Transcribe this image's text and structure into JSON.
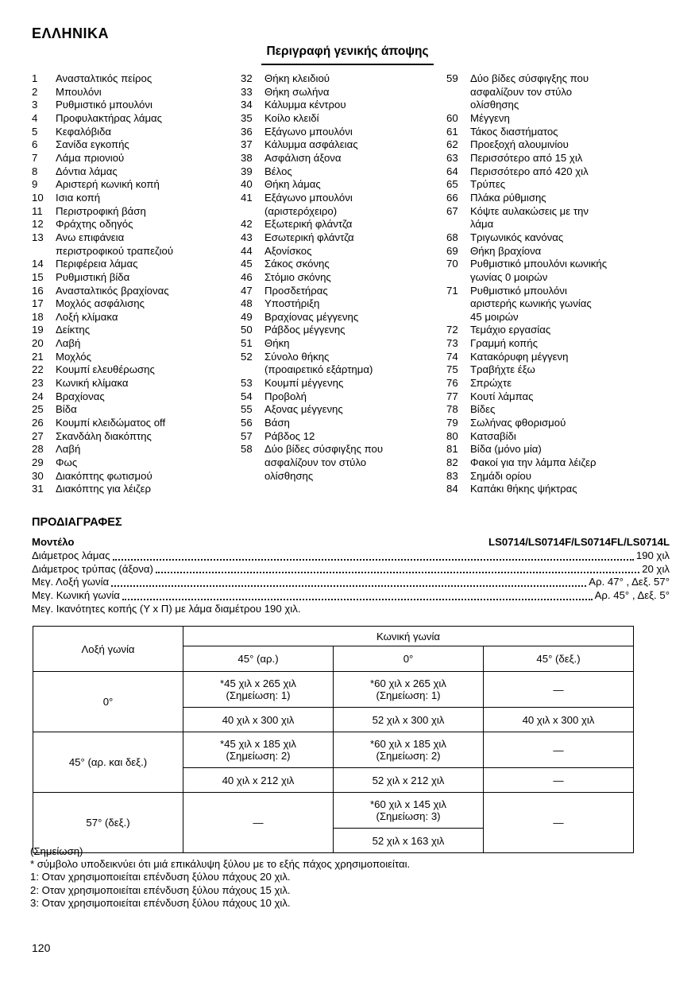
{
  "page": {
    "language_heading": "ΕΛΛΗΝΙΚΑ",
    "section_heading": "Περιγραφή γενικής άποψης",
    "page_number": "120"
  },
  "parts": {
    "col1": [
      {
        "n": "1",
        "t": "Ανασταλτικός πείρος"
      },
      {
        "n": "2",
        "t": "Μπουλόνι"
      },
      {
        "n": "3",
        "t": "Ρυθμιστικό μπουλόνι"
      },
      {
        "n": "4",
        "t": "Προφυλακτήρας λάμας"
      },
      {
        "n": "5",
        "t": "Κεφαλόβιδα"
      },
      {
        "n": "6",
        "t": "Σανίδα εγκοπής"
      },
      {
        "n": "7",
        "t": "Λάμα πριονιού"
      },
      {
        "n": "8",
        "t": "Δόντια λάμας"
      },
      {
        "n": "9",
        "t": "Αριστερή κωνική κοπή"
      },
      {
        "n": "10",
        "t": "Ισια κοπή"
      },
      {
        "n": "11",
        "t": "Περιστροφική βάση"
      },
      {
        "n": "12",
        "t": "Φράχτης οδηγός"
      },
      {
        "n": "13",
        "t": "Ανω επιφάνεια\nπεριστροφικού τραπεζιού"
      },
      {
        "n": "14",
        "t": "Περιφέρεια λάμας"
      },
      {
        "n": "15",
        "t": "Ρυθμιστική βίδα"
      },
      {
        "n": "16",
        "t": "Ανασταλτικός βραχίονας"
      },
      {
        "n": "17",
        "t": "Μοχλός ασφάλισης"
      },
      {
        "n": "18",
        "t": "Λοξή κλίμακα"
      },
      {
        "n": "19",
        "t": "Δείκτης"
      },
      {
        "n": "20",
        "t": "Λαβή"
      },
      {
        "n": "21",
        "t": "Μοχλός"
      },
      {
        "n": "22",
        "t": "Κουμπί ελευθέρωσης"
      },
      {
        "n": "23",
        "t": "Κωνική κλίμακα"
      },
      {
        "n": "24",
        "t": "Βραχίονας"
      },
      {
        "n": "25",
        "t": "Βίδα"
      },
      {
        "n": "26",
        "t": "Κουμπί κλειδώματος off"
      },
      {
        "n": "27",
        "t": "Σκανδάλη διακόπτης"
      },
      {
        "n": "28",
        "t": "Λαβή"
      },
      {
        "n": "29",
        "t": "Φως"
      },
      {
        "n": "30",
        "t": "Διακόπτης φωτισμού"
      },
      {
        "n": "31",
        "t": "Διακόπτης για λέιζερ"
      }
    ],
    "col2": [
      {
        "n": "32",
        "t": "Θήκη κλειδιού"
      },
      {
        "n": "33",
        "t": "Θήκη σωλήνα"
      },
      {
        "n": "34",
        "t": "Κάλυμμα κέντρου"
      },
      {
        "n": "35",
        "t": "Κοίλο κλειδί"
      },
      {
        "n": "36",
        "t": "Εξάγωνο μπουλόνι"
      },
      {
        "n": "37",
        "t": "Κάλυμμα ασφάλειας"
      },
      {
        "n": "38",
        "t": "Ασφάλιση άξονα"
      },
      {
        "n": "39",
        "t": "Βέλος"
      },
      {
        "n": "40",
        "t": "Θήκη λάμας"
      },
      {
        "n": "41",
        "t": "Εξάγωνο μπουλόνι\n(αριστερόχειρο)"
      },
      {
        "n": "42",
        "t": "Εξωτερική φλάντζα"
      },
      {
        "n": "43",
        "t": "Εσωτερική φλάντζα"
      },
      {
        "n": "44",
        "t": "Αξονίσκος"
      },
      {
        "n": "45",
        "t": "Σάκος σκόνης"
      },
      {
        "n": "46",
        "t": "Στόμιο σκόνης"
      },
      {
        "n": "47",
        "t": "Προσδετήρας"
      },
      {
        "n": "48",
        "t": "Υποστήριξη"
      },
      {
        "n": "49",
        "t": "Βραχίονας μέγγενης"
      },
      {
        "n": "50",
        "t": "Ράβδος μέγγενης"
      },
      {
        "n": "51",
        "t": "Θήκη"
      },
      {
        "n": "52",
        "t": "Σύνολο θήκης\n(προαιρετικό εξάρτημα)"
      },
      {
        "n": "53",
        "t": "Κουμπί μέγγενης"
      },
      {
        "n": "54",
        "t": "Προβολή"
      },
      {
        "n": "55",
        "t": "Αξονας μέγγενης"
      },
      {
        "n": "56",
        "t": "Βάση"
      },
      {
        "n": "57",
        "t": "Ράβδος 12"
      },
      {
        "n": "58",
        "t": "Δύο βίδες σύσφιγξης που\nασφαλίζουν τον στύλο\nολίσθησης"
      }
    ],
    "col3": [
      {
        "n": "59",
        "t": "Δύο βίδες σύσφιγξης που\nασφαλίζουν τον στύλο\nολίσθησης"
      },
      {
        "n": "60",
        "t": "Μέγγενη"
      },
      {
        "n": "61",
        "t": "Τάκος διαστήματος"
      },
      {
        "n": "62",
        "t": "Προεξοχή αλουμινίου"
      },
      {
        "n": "63",
        "t": "Περισσότερο από 15 χιλ"
      },
      {
        "n": "64",
        "t": "Περισσότερο από 420 χιλ"
      },
      {
        "n": "65",
        "t": "Τρύπες"
      },
      {
        "n": "66",
        "t": "Πλάκα ρύθμισης"
      },
      {
        "n": "67",
        "t": "Κόψτε αυλακώσεις με την\nλάμα"
      },
      {
        "n": "68",
        "t": "Τριγωνικός κανόνας"
      },
      {
        "n": "69",
        "t": "Θήκη βραχίονα"
      },
      {
        "n": "70",
        "t": "Ρυθμιστικό μπουλόνι κωνικής\nγωνίας 0 μοιρών"
      },
      {
        "n": "71",
        "t": "Ρυθμιστικό μπουλόνι\nαριστερής κωνικής γωνίας\n45 μοιρών"
      },
      {
        "n": "72",
        "t": "Τεμάχιο εργασίας"
      },
      {
        "n": "73",
        "t": "Γραμμή κοπής"
      },
      {
        "n": "74",
        "t": "Κατακόρυφη μέγγενη"
      },
      {
        "n": "75",
        "t": "Τραβήχτε έξω"
      },
      {
        "n": "76",
        "t": "Σπρώχτε"
      },
      {
        "n": "77",
        "t": "Κουτί λάμπας"
      },
      {
        "n": "78",
        "t": "Βίδες"
      },
      {
        "n": "79",
        "t": "Σωλήνας φθορισμού"
      },
      {
        "n": "80",
        "t": "Κατσαβίδι"
      },
      {
        "n": "81",
        "t": "Βίδα (μόνο μία)"
      },
      {
        "n": "82",
        "t": "Φακοί για την λάμπα λέιζερ"
      },
      {
        "n": "83",
        "t": "Σημάδι ορίου"
      },
      {
        "n": "84",
        "t": "Καπάκι θήκης ψήκτρας"
      }
    ]
  },
  "specs": {
    "heading": "ΠΡΟΔΙΑΓΡΑΦΕΣ",
    "rows": [
      {
        "label": "Μοντέλο",
        "value": "LS0714/LS0714F/LS0714FL/LS0714L",
        "leader": false,
        "bold": true
      },
      {
        "label": "Διάμετρος λάμας",
        "value": "190 χιλ",
        "leader": true,
        "bold": false
      },
      {
        "label": "Διάμετρος τρύπας (άξονα)",
        "value": "20 χιλ",
        "leader": true,
        "bold": false
      },
      {
        "label": "Μεγ. Λοξή γωνία",
        "value": "Αρ. 47° , Δεξ. 57°",
        "leader": true,
        "bold": false
      },
      {
        "label": "Μεγ. Κωνική γωνία",
        "value": "Αρ. 45° , Δεξ. 5°",
        "leader": true,
        "bold": false
      },
      {
        "label": "Μεγ. Ικανότητες κοπής (Υ x Π) με λάμα διαμέτρου 190 χιλ.",
        "value": "",
        "leader": false,
        "bold": false
      }
    ]
  },
  "capacity_table": {
    "corner_header": "Λοξή γωνία",
    "group_header": "Κωνική γωνία",
    "sub_headers": [
      "45° (αρ.)",
      "0°",
      "45° (δεξ.)"
    ],
    "row1": {
      "label": "0°",
      "a1": "*45 χιλ x 265 χιλ\n(Σημείωση: 1)",
      "a2": "*60 χιλ x 265 χιλ\n(Σημείωση: 1)",
      "a3": "—",
      "b1": "40 χιλ x 300 χιλ",
      "b2": "52 χιλ x 300 χιλ",
      "b3": "40 χιλ x 300 χιλ"
    },
    "row2": {
      "label": "45° (αρ. και δεξ.)",
      "a1": "*45 χιλ x 185 χιλ\n(Σημείωση: 2)",
      "a2": "*60 χιλ x 185 χιλ\n(Σημείωση: 2)",
      "a3": "—",
      "b1": "40 χιλ x 212 χιλ",
      "b2": "52 χιλ x 212 χιλ",
      "b3": "—"
    },
    "row3": {
      "label": "57° (δεξ.)",
      "left": "—",
      "a2": "*60 χιλ x 145 χιλ\n(Σημείωση: 3)",
      "b2": "52 χιλ x 163 χιλ",
      "right": "—"
    }
  },
  "notes": {
    "heading": "(Σημείωση)",
    "lines": [
      "* σύμβολο υποδεικνύει ότι μιά επικάλυψη ξύλου με το εξής πάχος χρησιμοποιείται.",
      "1: Οταν χρησιμοποιείται επένδυση ξύλου πάχους 20 χιλ.",
      "2: Οταν χρησιμοποιείται επένδυση ξύλου πάχους 15 χιλ.",
      "3: Οταν χρησιμοποιείται επένδυση ξύλου πάχους 10 χιλ."
    ]
  }
}
